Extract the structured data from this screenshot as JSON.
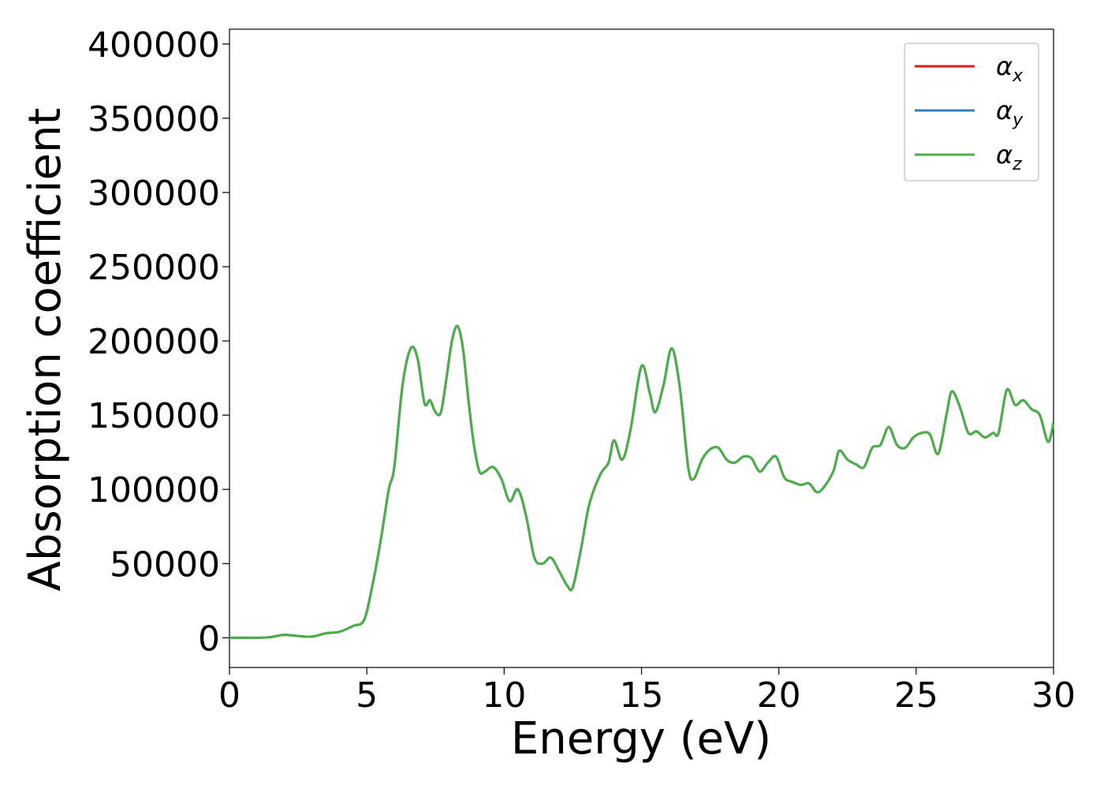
{
  "chart_data": {
    "type": "line",
    "xlabel": "Energy (eV)",
    "ylabel": "Absorption coefficient",
    "xlim": [
      0,
      30
    ],
    "ylim": [
      -20000,
      410000
    ],
    "xticks": [
      0,
      5,
      10,
      15,
      20,
      25,
      30
    ],
    "yticks": [
      0,
      50000,
      100000,
      150000,
      200000,
      250000,
      300000,
      350000,
      400000
    ],
    "xtick_labels": [
      "0",
      "5",
      "10",
      "15",
      "20",
      "25",
      "30"
    ],
    "ytick_labels": [
      "0",
      "50000",
      "100000",
      "150000",
      "200000",
      "250000",
      "300000",
      "350000",
      "400000"
    ],
    "grid": false,
    "legend_position": "top-right",
    "series": [
      {
        "name": "αx",
        "label_main": "α",
        "label_sub": "x",
        "color": "#e41a1c"
      },
      {
        "name": "αy",
        "label_main": "α",
        "label_sub": "y",
        "color": "#377eb8"
      },
      {
        "name": "αz",
        "label_main": "α",
        "label_sub": "z",
        "color": "#4daf4a"
      }
    ],
    "x": [
      0,
      1,
      1.5,
      2,
      2.5,
      3,
      3.5,
      4,
      4.5,
      4.9,
      5.2,
      5.5,
      5.8,
      6.0,
      6.3,
      6.6,
      6.85,
      7.1,
      7.3,
      7.5,
      7.7,
      7.9,
      8.1,
      8.3,
      8.5,
      8.7,
      8.9,
      9.1,
      9.3,
      9.6,
      9.9,
      10.2,
      10.5,
      10.8,
      11.1,
      11.4,
      11.7,
      12.0,
      12.3,
      12.5,
      12.8,
      13.1,
      13.5,
      13.8,
      14.0,
      14.3,
      14.6,
      15.0,
      15.3,
      15.5,
      15.8,
      16.1,
      16.4,
      16.7,
      16.9,
      17.2,
      17.5,
      17.8,
      18.1,
      18.4,
      18.7,
      19.0,
      19.3,
      19.6,
      19.9,
      20.2,
      20.5,
      20.8,
      21.1,
      21.4,
      21.7,
      22.0,
      22.2,
      22.5,
      22.8,
      23.1,
      23.4,
      23.7,
      24.0,
      24.3,
      24.6,
      24.9,
      25.2,
      25.5,
      25.8,
      26.1,
      26.3,
      26.6,
      26.9,
      27.2,
      27.5,
      27.8,
      28.0,
      28.3,
      28.6,
      28.9,
      29.2,
      29.5,
      29.8,
      30.0
    ],
    "y": [
      0,
      0,
      500,
      2000,
      1200,
      800,
      3000,
      4000,
      8000,
      12000,
      35000,
      65000,
      100000,
      115000,
      170000,
      195000,
      188000,
      158000,
      160000,
      152000,
      152000,
      175000,
      200000,
      210000,
      195000,
      160000,
      130000,
      112000,
      112000,
      115000,
      107000,
      92000,
      100000,
      82000,
      54000,
      50000,
      54000,
      45000,
      35000,
      34000,
      60000,
      90000,
      110000,
      118000,
      133000,
      120000,
      140000,
      183000,
      165000,
      152000,
      170000,
      195000,
      168000,
      115000,
      107000,
      120000,
      127000,
      128000,
      120000,
      118000,
      122000,
      121000,
      112000,
      118000,
      122000,
      108000,
      105000,
      103000,
      104000,
      98000,
      103000,
      113000,
      126000,
      120000,
      117000,
      115000,
      128000,
      130000,
      142000,
      130000,
      128000,
      135000,
      138000,
      137000,
      124000,
      150000,
      166000,
      155000,
      138000,
      139000,
      135000,
      138000,
      138000,
      167000,
      157000,
      160000,
      154000,
      150000,
      132000,
      145000
    ]
  }
}
